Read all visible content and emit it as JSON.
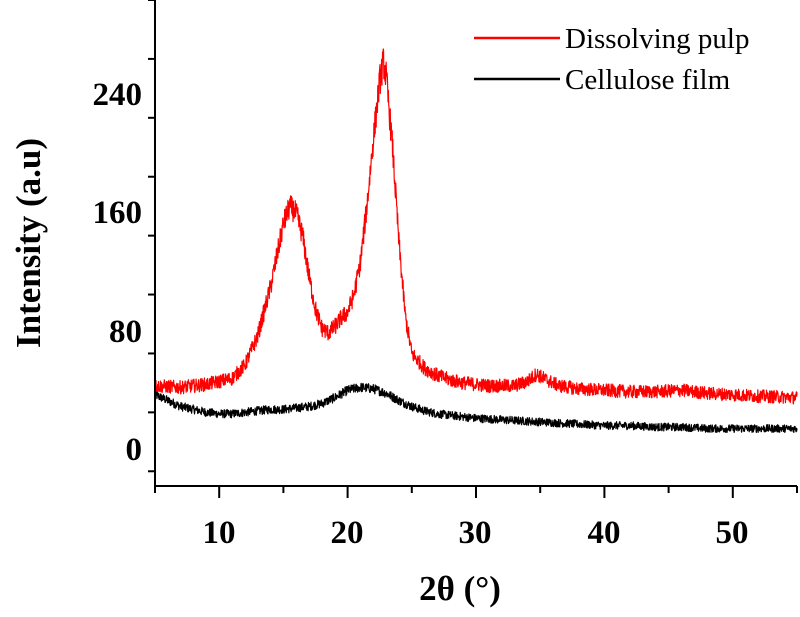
{
  "chart_data": {
    "type": "line",
    "title": "",
    "xlabel": "2θ (°)",
    "ylabel": "Intensity (a.u)",
    "xlim": [
      5,
      55
    ],
    "ylim": [
      -30,
      300
    ],
    "x_ticks": [
      10,
      20,
      30,
      40,
      50
    ],
    "x_tick_labels": [
      "10",
      "20",
      "30",
      "40",
      "50"
    ],
    "y_ticks": [
      0,
      80,
      160,
      240
    ],
    "y_tick_labels": [
      "0",
      "80",
      "160",
      "240"
    ],
    "grid": false,
    "legend_position": "top-right",
    "series": [
      {
        "name": "Dissolving pulp",
        "color": "#ff0000",
        "x": [
          5,
          7,
          9,
          11,
          12,
          13,
          14,
          15,
          15.5,
          16,
          16.5,
          17,
          17.5,
          18,
          18.5,
          19,
          19.5,
          20,
          20.5,
          21,
          21.5,
          22,
          22.5,
          22.8,
          23,
          23.5,
          24,
          24.5,
          25,
          26,
          27,
          28,
          29,
          30,
          31,
          32,
          33,
          34,
          34.7,
          35.5,
          36.5,
          38,
          40,
          42,
          44,
          46,
          48,
          50,
          52,
          55
        ],
        "y": [
          38,
          37,
          39,
          43,
          52,
          72,
          105,
          148,
          160,
          155,
          140,
          112,
          90,
          77,
          74,
          78,
          84,
          88,
          100,
          122,
          160,
          205,
          245,
          258,
          248,
          200,
          135,
          85,
          60,
          50,
          45,
          42,
          40,
          39,
          38,
          38,
          38,
          41,
          46,
          42,
          38,
          36,
          35,
          34,
          34,
          35,
          33,
          32,
          31,
          30
        ],
        "noise": 3.5
      },
      {
        "name": "Cellulose film",
        "color": "#000000",
        "x": [
          5,
          6,
          7,
          8,
          9,
          10,
          11,
          12,
          13,
          14,
          15,
          16,
          17,
          18,
          19,
          20,
          21,
          22,
          23,
          24,
          25,
          26,
          27,
          28,
          30,
          32,
          34,
          36,
          38,
          40,
          42,
          44,
          46,
          48,
          50,
          52,
          55
        ],
        "y": [
          32,
          28,
          24,
          22,
          20,
          19,
          19,
          20,
          21,
          22,
          22,
          23,
          24,
          26,
          30,
          35,
          37,
          36,
          33,
          28,
          24,
          21,
          19,
          18,
          16,
          15,
          14,
          13,
          12,
          11,
          11,
          10,
          10,
          9,
          9,
          9,
          9
        ],
        "noise": 2.5
      }
    ]
  }
}
